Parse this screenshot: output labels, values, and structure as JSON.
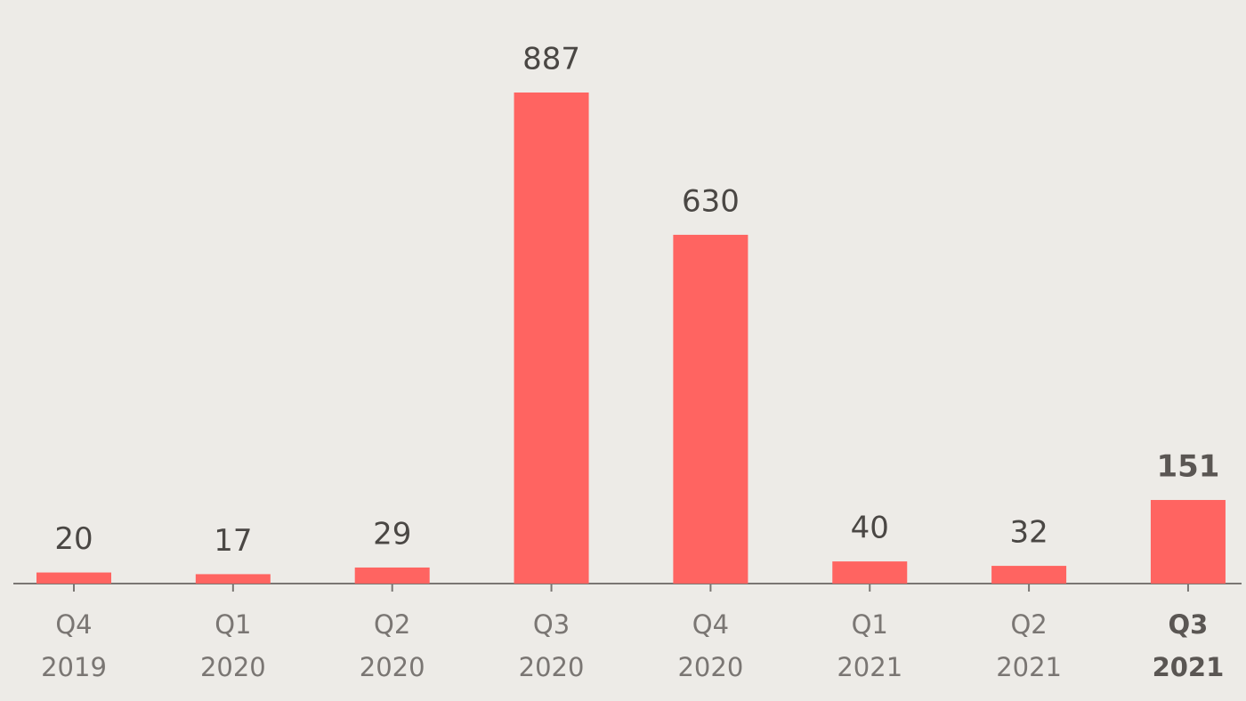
{
  "chart_data": {
    "type": "bar",
    "categories": [
      [
        "Q4",
        "2019"
      ],
      [
        "Q1",
        "2020"
      ],
      [
        "Q2",
        "2020"
      ],
      [
        "Q3",
        "2020"
      ],
      [
        "Q4",
        "2020"
      ],
      [
        "Q1",
        "2021"
      ],
      [
        "Q2",
        "2021"
      ],
      [
        "Q3",
        "2021"
      ]
    ],
    "values": [
      20,
      17,
      29,
      887,
      630,
      40,
      32,
      151
    ],
    "color": "#ff6461"
  }
}
